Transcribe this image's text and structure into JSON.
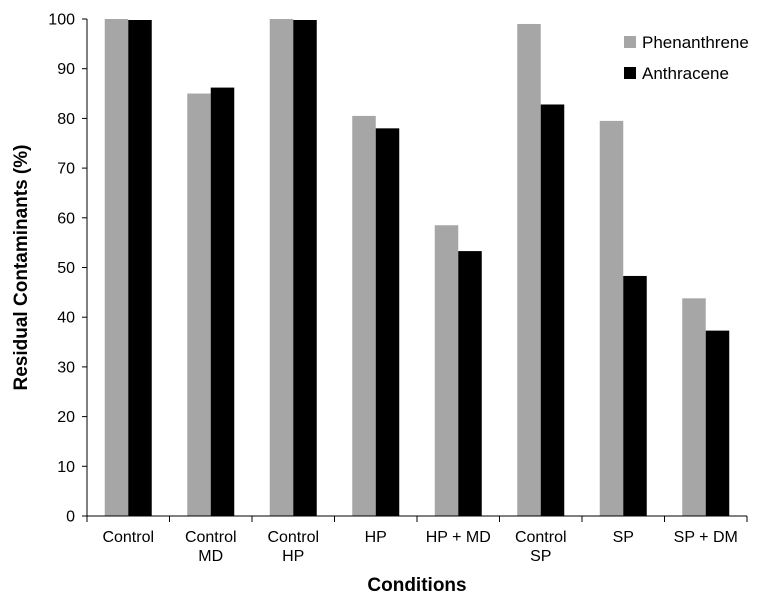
{
  "chart_data": {
    "type": "bar",
    "title": "",
    "xlabel": "Conditions",
    "ylabel": "Residual Contaminants (%)",
    "ylim": [
      0,
      100
    ],
    "yticks": [
      0,
      10,
      20,
      30,
      40,
      50,
      60,
      70,
      80,
      90,
      100
    ],
    "grid": false,
    "legend_position": "top-right",
    "categories": [
      [
        "Control"
      ],
      [
        "Control",
        "MD"
      ],
      [
        "Control",
        "HP"
      ],
      [
        "HP"
      ],
      [
        "HP + MD"
      ],
      [
        "Control",
        "SP"
      ],
      [
        "SP"
      ],
      [
        "SP + DM"
      ]
    ],
    "series": [
      {
        "name": "Phenanthrene",
        "color": "#a6a6a6",
        "values": [
          100,
          85,
          100,
          80.5,
          58.5,
          99,
          79.5,
          43.8
        ]
      },
      {
        "name": "Anthracene",
        "color": "#000000",
        "values": [
          99.8,
          86.2,
          99.8,
          78,
          53.3,
          82.8,
          48.3,
          37.3
        ]
      }
    ]
  }
}
